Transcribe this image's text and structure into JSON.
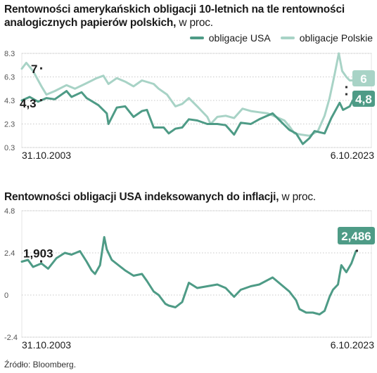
{
  "source": "Źródło: Bloomberg.",
  "colors": {
    "usa": "#4e9b86",
    "pl": "#a8d3c6",
    "grid": "#c8c8c8",
    "frame": "#e6e6e6"
  },
  "chart_data": [
    {
      "type": "line",
      "title": "Rentowności amerykańskich obligacji 10-letnich na tle rentowności analogicznych papierów polskich,",
      "title_unit": "w proc.",
      "x_start_label": "31.10.2003",
      "x_end_label": "6.10.2023",
      "y_ticks": [
        "8.3",
        "6.3",
        "4.3",
        "2.3",
        "0.3"
      ],
      "ylim": [
        0.3,
        8.3
      ],
      "legend": [
        "obligacje USA",
        "obligacje Polskie"
      ],
      "start_labels": {
        "pl": "7",
        "usa": "4,3"
      },
      "end_labels": {
        "pl": "6",
        "usa": "4,8"
      },
      "series": [
        {
          "name": "obligacje USA",
          "x": [
            2003.83,
            2004.3,
            2004.8,
            2005.3,
            2005.8,
            2006.5,
            2006.8,
            2007.4,
            2007.7,
            2008.4,
            2008.9,
            2009.0,
            2009.5,
            2010.0,
            2010.5,
            2011.0,
            2011.3,
            2011.7,
            2012.3,
            2012.6,
            2013.0,
            2013.4,
            2013.8,
            2014.3,
            2014.9,
            2015.5,
            2016.0,
            2016.5,
            2016.9,
            2017.5,
            2018.0,
            2018.8,
            2019.3,
            2019.8,
            2020.2,
            2020.6,
            2021.0,
            2021.3,
            2021.9,
            2022.3,
            2022.8,
            2023.0,
            2023.4,
            2023.77
          ],
          "values": [
            4.3,
            4.6,
            4.2,
            4.5,
            4.4,
            5.1,
            4.6,
            5.0,
            4.5,
            3.9,
            3.2,
            2.3,
            3.7,
            3.8,
            2.9,
            3.4,
            3.5,
            2.0,
            2.0,
            1.5,
            1.9,
            2.0,
            2.7,
            2.6,
            2.3,
            2.3,
            2.2,
            1.4,
            2.4,
            2.3,
            2.7,
            3.2,
            2.5,
            1.8,
            1.5,
            0.6,
            1.1,
            1.7,
            1.5,
            2.8,
            4.1,
            3.5,
            3.8,
            4.8
          ]
        },
        {
          "name": "obligacje Polskie",
          "x": [
            2003.83,
            2004.1,
            2004.5,
            2005.0,
            2005.3,
            2005.8,
            2006.5,
            2007.0,
            2007.6,
            2008.3,
            2008.7,
            2009.0,
            2009.5,
            2010.0,
            2010.5,
            2011.0,
            2011.7,
            2012.0,
            2012.5,
            2013.0,
            2013.4,
            2013.8,
            2014.3,
            2014.9,
            2015.1,
            2015.5,
            2016.0,
            2016.5,
            2017.0,
            2017.5,
            2018.0,
            2018.5,
            2019.0,
            2019.5,
            2019.8,
            2020.1,
            2020.5,
            2021.0,
            2021.5,
            2021.9,
            2022.2,
            2022.5,
            2022.75,
            2022.95,
            2023.2,
            2023.4,
            2023.77
          ],
          "values": [
            7.0,
            7.5,
            6.8,
            5.5,
            4.8,
            5.1,
            5.6,
            5.3,
            5.7,
            6.2,
            6.4,
            5.7,
            6.2,
            5.9,
            5.5,
            6.0,
            5.7,
            5.3,
            4.8,
            3.8,
            4.0,
            4.5,
            3.8,
            2.9,
            2.3,
            2.9,
            3.0,
            2.8,
            3.6,
            3.4,
            3.3,
            3.2,
            2.9,
            2.6,
            2.1,
            1.5,
            1.4,
            1.3,
            1.7,
            3.0,
            4.5,
            6.5,
            8.3,
            6.8,
            6.3,
            6.0,
            6.0
          ]
        }
      ]
    },
    {
      "type": "line",
      "title": "Rentowności obligacji USA indeksowanych do inflacji,",
      "title_unit": "w proc.",
      "x_start_label": "31.10.2003",
      "x_end_label": "6.10.2023",
      "y_ticks": [
        "4.8",
        "2.4",
        "0",
        "-2.4"
      ],
      "ylim": [
        -2.4,
        4.8
      ],
      "start_label": "1,903",
      "end_label": "2,486",
      "series": [
        {
          "x": [
            2003.83,
            2004.2,
            2004.5,
            2005.0,
            2005.4,
            2005.9,
            2006.4,
            2006.8,
            2007.3,
            2007.7,
            2008.0,
            2008.2,
            2008.5,
            2008.75,
            2008.9,
            2009.2,
            2009.6,
            2010.0,
            2010.5,
            2011.0,
            2011.3,
            2011.7,
            2012.0,
            2012.4,
            2012.6,
            2013.0,
            2013.4,
            2013.8,
            2014.3,
            2014.9,
            2015.5,
            2016.0,
            2016.5,
            2016.9,
            2017.5,
            2018.0,
            2018.8,
            2019.3,
            2019.8,
            2020.2,
            2020.4,
            2020.8,
            2021.2,
            2021.6,
            2021.9,
            2022.2,
            2022.4,
            2022.7,
            2022.9,
            2023.2,
            2023.5,
            2023.77
          ],
          "values": [
            1.9,
            2.0,
            1.6,
            1.8,
            1.5,
            2.1,
            2.4,
            2.3,
            2.5,
            1.9,
            1.4,
            1.2,
            1.7,
            3.3,
            2.6,
            2.0,
            1.7,
            1.4,
            1.1,
            1.2,
            0.8,
            0.2,
            0.0,
            -0.5,
            -0.6,
            -0.7,
            -0.4,
            0.7,
            0.4,
            0.5,
            0.6,
            0.4,
            -0.1,
            0.3,
            0.5,
            0.6,
            1.0,
            0.6,
            0.2,
            -0.3,
            -0.8,
            -1.0,
            -1.0,
            -1.1,
            -0.9,
            -0.1,
            0.3,
            0.6,
            1.7,
            1.3,
            1.8,
            2.5
          ]
        }
      ]
    }
  ]
}
